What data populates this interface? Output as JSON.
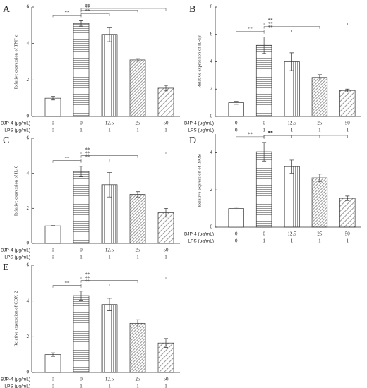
{
  "chart_data": [
    {
      "type": "bar",
      "panel": "A",
      "y_label": "Relative expression of TNF-α",
      "category_rows": [
        {
          "label": "BJP-4 (μg/mL)",
          "values": [
            "0",
            "0",
            "12.5",
            "25",
            "50"
          ]
        },
        {
          "label": "LPS (μg/mL)",
          "values": [
            "0",
            "1",
            "1",
            "1",
            "1"
          ]
        }
      ],
      "values": [
        1.0,
        5.1,
        4.5,
        3.1,
        1.55
      ],
      "errors": [
        0.1,
        0.15,
        0.4,
        0.07,
        0.15
      ],
      "hatches": [
        "none",
        "horizontal",
        "vertical",
        "diagonal-dense",
        "diagonal"
      ],
      "color": "#333333",
      "ylim": [
        0,
        6
      ],
      "yticks": [
        0,
        2,
        4,
        6
      ],
      "annotations": [
        {
          "text": "**",
          "from": 0,
          "to": 1
        },
        {
          "text": "**",
          "from": 1,
          "to": 2
        },
        {
          "text": "**",
          "from": 1,
          "to": 3
        },
        {
          "text": "**",
          "from": 1,
          "to": 4
        }
      ]
    },
    {
      "type": "bar",
      "panel": "B",
      "y_label": "Relative expression of IL-1β",
      "category_rows": [
        {
          "label": "BJP-4 (μg/mL)",
          "values": [
            "0",
            "0",
            "12.5",
            "25",
            "50"
          ]
        },
        {
          "label": "LPS (μg/mL)",
          "values": [
            "0",
            "1",
            "1",
            "1",
            "1"
          ]
        }
      ],
      "values": [
        1.0,
        5.2,
        4.0,
        2.85,
        1.9
      ],
      "errors": [
        0.12,
        0.6,
        0.65,
        0.2,
        0.1
      ],
      "hatches": [
        "none",
        "horizontal",
        "vertical",
        "diagonal-dense",
        "diagonal"
      ],
      "color": "#333333",
      "ylim": [
        0,
        8
      ],
      "yticks": [
        0,
        2,
        4,
        6,
        8
      ],
      "annotations": [
        {
          "text": "**",
          "from": 0,
          "to": 1
        },
        {
          "text": "**",
          "from": 1,
          "to": 2
        },
        {
          "text": "**",
          "from": 1,
          "to": 3
        },
        {
          "text": "**",
          "from": 1,
          "to": 4
        }
      ]
    },
    {
      "type": "bar",
      "panel": "C",
      "y_label": "Relative expression of IL-6",
      "category_rows": [
        {
          "label": "BJP-4 (μg/mL)",
          "values": [
            "0",
            "0",
            "12.5",
            "25",
            "50"
          ]
        },
        {
          "label": "LPS (μg/mL)",
          "values": [
            "0",
            "1",
            "1",
            "1",
            "1"
          ]
        }
      ],
      "values": [
        1.0,
        4.1,
        3.35,
        2.8,
        1.75
      ],
      "errors": [
        0.02,
        0.3,
        0.7,
        0.15,
        0.25
      ],
      "hatches": [
        "none",
        "horizontal",
        "vertical",
        "diagonal-dense",
        "diagonal"
      ],
      "color": "#333333",
      "ylim": [
        0,
        6
      ],
      "yticks": [
        0,
        2,
        4,
        6
      ],
      "annotations": [
        {
          "text": "**",
          "from": 0,
          "to": 1
        },
        {
          "text": "**",
          "from": 1,
          "to": 2
        },
        {
          "text": "**",
          "from": 1,
          "to": 3
        },
        {
          "text": "**",
          "from": 1,
          "to": 4
        }
      ]
    },
    {
      "type": "bar",
      "panel": "D",
      "y_label": "Relative expression of iNOS",
      "category_rows": [
        {
          "label": "BJP-4 (μg/mL)",
          "values": [
            "0",
            "0",
            "12.5",
            "25",
            "50"
          ]
        },
        {
          "label": "LPS (μg/mL)",
          "values": [
            "0",
            "1",
            "1",
            "1",
            "1"
          ]
        }
      ],
      "values": [
        1.0,
        4.05,
        3.25,
        2.65,
        1.55
      ],
      "errors": [
        0.07,
        0.5,
        0.35,
        0.2,
        0.12
      ],
      "hatches": [
        "none",
        "horizontal",
        "vertical",
        "diagonal-dense",
        "diagonal"
      ],
      "color": "#333333",
      "ylim": [
        0,
        5
      ],
      "yticks": [
        0,
        2,
        4
      ],
      "annotations": [
        {
          "text": "**",
          "from": 0,
          "to": 1
        },
        {
          "text": "**",
          "from": 1,
          "to": 2
        },
        {
          "text": "**",
          "from": 1,
          "to": 3
        },
        {
          "text": "**",
          "from": 1,
          "to": 4
        }
      ]
    },
    {
      "type": "bar",
      "panel": "E",
      "y_label": "Relative expression of COX-2",
      "category_rows": [
        {
          "label": "BJP-4 (μg/mL)",
          "values": [
            "0",
            "0",
            "12.5",
            "25",
            "50"
          ]
        },
        {
          "label": "LPS (μg/mL)",
          "values": [
            "0",
            "1",
            "1",
            "1",
            "1"
          ]
        }
      ],
      "values": [
        1.0,
        4.3,
        3.8,
        2.75,
        1.65
      ],
      "errors": [
        0.1,
        0.25,
        0.35,
        0.2,
        0.25
      ],
      "hatches": [
        "none",
        "horizontal",
        "vertical",
        "diagonal-dense",
        "diagonal"
      ],
      "color": "#333333",
      "ylim": [
        0,
        6
      ],
      "yticks": [
        0,
        2,
        4,
        6
      ],
      "annotations": [
        {
          "text": "**",
          "from": 0,
          "to": 1
        },
        {
          "text": "**",
          "from": 1,
          "to": 2
        },
        {
          "text": "**",
          "from": 1,
          "to": 3
        },
        {
          "text": "**",
          "from": 1,
          "to": 4
        }
      ]
    }
  ]
}
